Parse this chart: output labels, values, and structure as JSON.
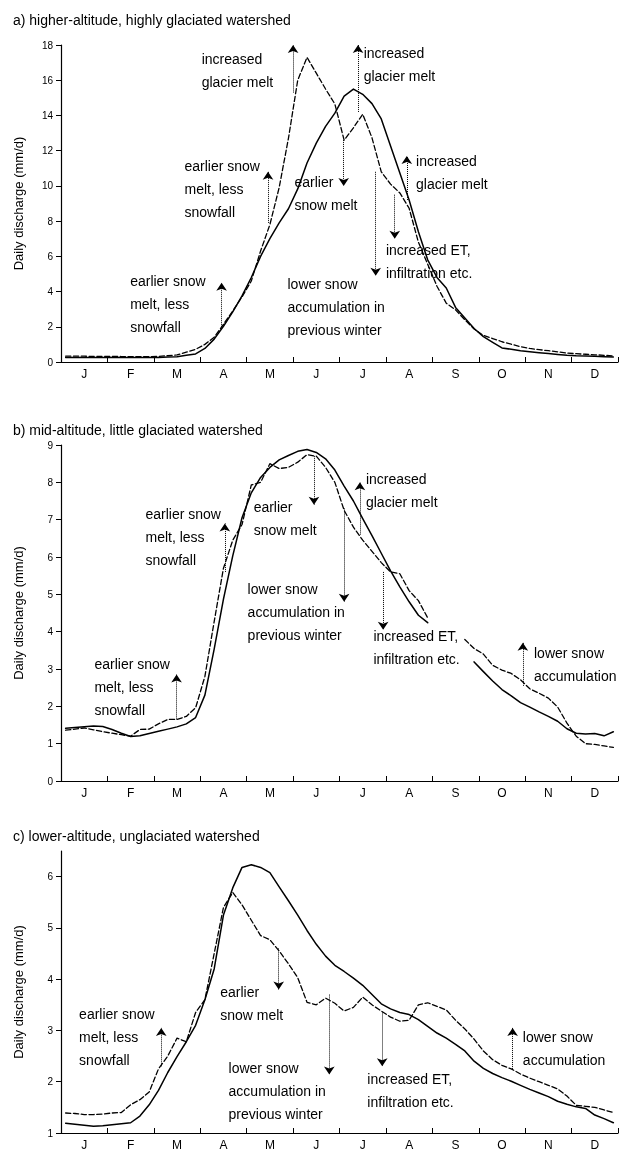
{
  "chart_data": [
    {
      "type": "line",
      "title": "a) higher-altitude, highly glaciated watershed",
      "ylabel": "Daily discharge (mm/d)",
      "categories": [
        null,
        null,
        "J",
        null,
        null,
        null,
        null,
        "F",
        null,
        null,
        null,
        null,
        "M",
        null,
        null,
        null,
        null,
        "A",
        null,
        null,
        null,
        null,
        "M",
        null,
        null,
        null,
        null,
        "J",
        null,
        null,
        null,
        null,
        "J",
        null,
        null,
        null,
        null,
        "A",
        null,
        null,
        null,
        null,
        "S",
        null,
        null,
        null,
        null,
        "O",
        null,
        null,
        null,
        null,
        "N",
        null,
        null,
        null,
        null,
        "D",
        null,
        null
      ],
      "ylim": [
        0,
        18
      ],
      "yticks": [
        0,
        2,
        4,
        6,
        8,
        10,
        12,
        14,
        16,
        18
      ],
      "marker": "none",
      "series": [
        {
          "color": "#000000",
          "line_style": "solid",
          "values": [
            0.25,
            0.25,
            0.25,
            0.25,
            0.25,
            0.25,
            0.25,
            0.25,
            0.25,
            0.25,
            0.26,
            0.28,
            0.3,
            0.38,
            0.46,
            0.77,
            1.3,
            2.03,
            2.85,
            3.75,
            4.8,
            6,
            7,
            7.9,
            8.7,
            9.83,
            11.3,
            12.43,
            13.38,
            14.13,
            15.1,
            15.5,
            15.2,
            14.67,
            13.8,
            12.27,
            10.73,
            9.2,
            7.4,
            5.8,
            4.8,
            4.2,
            3.1,
            2.5,
            1.9,
            1.44,
            1.12,
            0.8,
            0.72,
            0.64,
            0.58,
            0.53,
            0.48,
            0.43,
            0.38,
            0.35,
            0.34,
            0.32,
            0.3,
            0.29
          ]
        },
        {
          "color": "#000000",
          "line_style": "dashed",
          "values": [
            0.33,
            0.33,
            0.33,
            0.32,
            0.32,
            0.32,
            0.31,
            0.31,
            0.3,
            0.3,
            0.32,
            0.36,
            0.4,
            0.56,
            0.72,
            1,
            1.4,
            2.14,
            2.9,
            3.7,
            4.6,
            6.3,
            7.8,
            9.9,
            12.7,
            16,
            17.3,
            16.4,
            15.5,
            14.65,
            12.6,
            13.3,
            14.07,
            12.73,
            10.8,
            10.1,
            9.6,
            8.73,
            6.8,
            5.55,
            4.3,
            3.34,
            2.96,
            2.4,
            1.87,
            1.51,
            1.33,
            1.15,
            1.01,
            0.87,
            0.77,
            0.7,
            0.64,
            0.58,
            0.51,
            0.47,
            0.44,
            0.41,
            0.38,
            0.34
          ]
        }
      ],
      "annotations": [
        "earlier snow\nmelt, less\nsnowfall",
        "earlier snow\nmelt, less\nsnowfall",
        "increased\nglacier melt",
        "earlier\nsnow melt",
        "increased\nglacier melt",
        "lower snow\naccumulation in\nprevious winter",
        "increased ET,\ninfiltration etc.",
        "increased\nglacier melt"
      ]
    },
    {
      "type": "line",
      "title": "b) mid-altitude, little glaciated watershed",
      "ylabel": "Daily discharge (mm/d)",
      "categories": [
        null,
        null,
        "J",
        null,
        null,
        null,
        null,
        "F",
        null,
        null,
        null,
        null,
        "M",
        null,
        null,
        null,
        null,
        "A",
        null,
        null,
        null,
        null,
        "M",
        null,
        null,
        null,
        null,
        "J",
        null,
        null,
        null,
        null,
        "J",
        null,
        null,
        null,
        null,
        "A",
        null,
        null,
        null,
        null,
        "S",
        null,
        null,
        null,
        null,
        "O",
        null,
        null,
        null,
        null,
        "N",
        null,
        null,
        null,
        null,
        "D",
        null,
        null
      ],
      "ylim": [
        0,
        9
      ],
      "yticks": [
        0,
        1,
        2,
        3,
        4,
        5,
        6,
        7,
        8,
        9
      ],
      "marker": "none",
      "series": [
        {
          "color": "#000000",
          "line_style": "solid",
          "values": [
            1.41,
            1.43,
            1.45,
            1.47,
            1.46,
            1.38,
            1.28,
            1.19,
            1.21,
            1.27,
            1.33,
            1.39,
            1.45,
            1.53,
            1.7,
            2.3,
            3.53,
            4.87,
            6.03,
            7.05,
            7.72,
            8.13,
            8.4,
            8.6,
            8.72,
            8.83,
            8.88,
            8.8,
            8.63,
            8.33,
            7.9,
            7.5,
            7.03,
            6.57,
            6.1,
            5.63,
            5.2,
            4.8,
            4.44,
            4.24,
            null,
            null,
            null,
            null,
            3.19,
            2.93,
            2.68,
            2.45,
            2.28,
            2.1,
            1.98,
            1.85,
            1.73,
            1.6,
            1.4,
            1.28,
            1.26,
            1.27,
            1.21,
            1.32
          ]
        },
        {
          "color": "#000000",
          "line_style": "dashed",
          "values": [
            1.36,
            1.39,
            1.42,
            1.37,
            1.32,
            1.28,
            1.24,
            1.2,
            1.38,
            1.39,
            1.53,
            1.65,
            1.65,
            1.73,
            1.96,
            2.8,
            4.27,
            5.7,
            6.45,
            6.87,
            7.93,
            8,
            8.5,
            8.37,
            8.4,
            8.54,
            8.74,
            8.7,
            8.4,
            8,
            7.25,
            6.8,
            6.45,
            6.15,
            5.85,
            5.6,
            5.55,
            5.1,
            4.83,
            4.37,
            null,
            null,
            null,
            3.79,
            3.55,
            3.4,
            3.1,
            2.97,
            2.88,
            2.71,
            2.47,
            2.35,
            2.22,
            1.98,
            1.55,
            1.2,
            1,
            0.98,
            0.94,
            0.9
          ]
        }
      ],
      "annotations": [
        "earlier snow\nmelt, less\nsnowfall",
        "earlier snow\nmelt, less\nsnowfall",
        "earlier\nsnow melt",
        "lower snow\naccumulation in\nprevious winter",
        "increased\nglacier melt",
        "increased ET,\ninfiltration etc.",
        "lower snow\naccumulation"
      ]
    },
    {
      "type": "line",
      "title": "c) lower-altitude, unglaciated watershed",
      "ylabel": "Daily discharge (mm/d)",
      "categories": [
        null,
        null,
        "J",
        null,
        null,
        null,
        null,
        "F",
        null,
        null,
        null,
        null,
        "M",
        null,
        null,
        null,
        null,
        "A",
        null,
        null,
        null,
        null,
        "M",
        null,
        null,
        null,
        null,
        "J",
        null,
        null,
        null,
        null,
        "J",
        null,
        null,
        null,
        null,
        "A",
        null,
        null,
        null,
        null,
        "S",
        null,
        null,
        null,
        null,
        "O",
        null,
        null,
        null,
        null,
        "N",
        null,
        null,
        null,
        null,
        "D",
        null,
        null
      ],
      "ylim": [
        1,
        6.5
      ],
      "yticks": [
        1,
        2,
        3,
        4,
        5,
        6
      ],
      "marker": "none",
      "series": [
        {
          "color": "#000000",
          "line_style": "solid",
          "values": [
            1.19,
            1.17,
            1.15,
            1.13,
            1.14,
            1.16,
            1.18,
            1.2,
            1.33,
            1.55,
            1.83,
            2.18,
            2.49,
            2.78,
            3.1,
            3.6,
            4.2,
            5.25,
            5.78,
            6.18,
            6.23,
            6.18,
            6.08,
            5.8,
            5.53,
            5.25,
            4.95,
            4.68,
            4.45,
            4.27,
            4.15,
            4.02,
            3.88,
            3.7,
            3.52,
            3.42,
            3.35,
            3.31,
            3.21,
            3.08,
            2.95,
            2.85,
            2.73,
            2.6,
            2.4,
            2.26,
            2.16,
            2.08,
            2.01,
            1.93,
            1.85,
            1.78,
            1.71,
            1.62,
            1.56,
            1.51,
            1.48,
            1.35,
            1.28,
            1.2
          ]
        },
        {
          "color": "#000000",
          "line_style": "dashed",
          "values": [
            1.39,
            1.38,
            1.36,
            1.36,
            1.37,
            1.39,
            1.4,
            1.55,
            1.65,
            1.8,
            2.25,
            2.5,
            2.85,
            2.78,
            3.35,
            3.6,
            4.5,
            5.4,
            5.69,
            5.45,
            5.15,
            4.85,
            4.77,
            4.55,
            4.3,
            4.03,
            3.55,
            3.5,
            3.63,
            3.53,
            3.38,
            3.45,
            3.65,
            3.5,
            3.38,
            3.26,
            3.18,
            3.2,
            3.5,
            3.54,
            3.47,
            3.4,
            3.2,
            3.03,
            2.83,
            2.6,
            2.43,
            2.32,
            2.25,
            2.15,
            2.07,
            2,
            1.93,
            1.86,
            1.72,
            1.54,
            1.52,
            1.5,
            1.45,
            1.4
          ]
        }
      ],
      "annotations": [
        "earlier snow\nmelt, less\nsnowfall",
        "earlier\nsnow melt",
        "lower snow\naccumulation in\nprevious winter",
        "increased ET,\ninfiltration etc.",
        "lower snow\naccumulation"
      ]
    }
  ]
}
